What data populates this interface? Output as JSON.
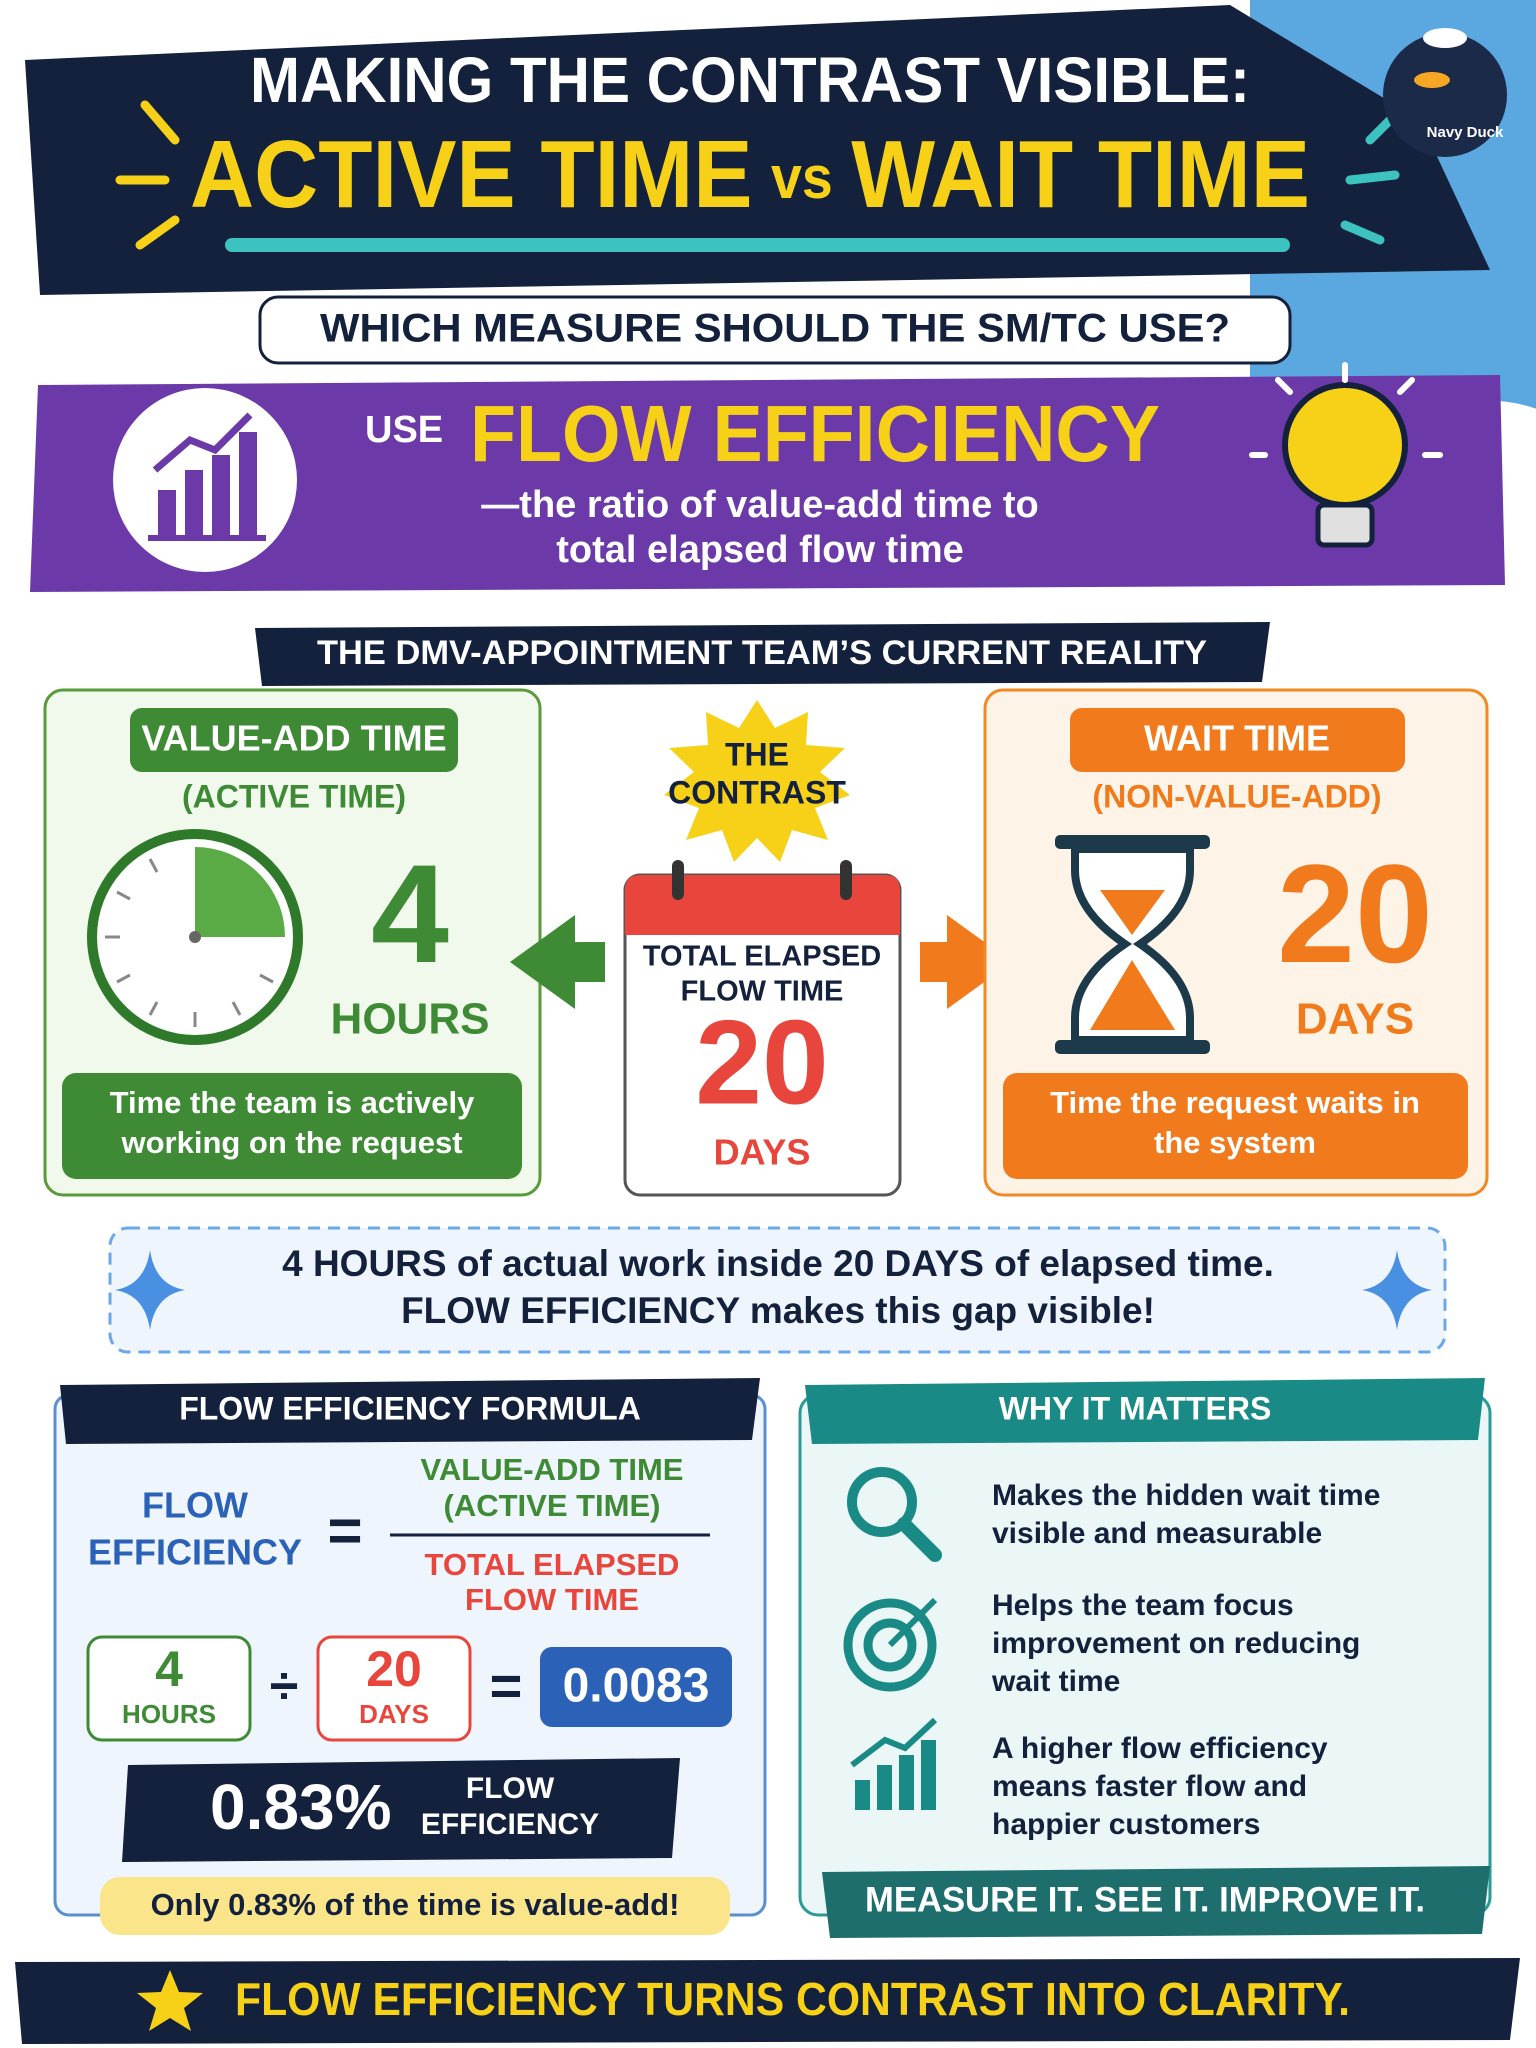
{
  "header": {
    "title_line1": "MAKING THE CONTRAST VISIBLE:",
    "title_active": "ACTIVE TIME",
    "title_vs": "vs",
    "title_wait": "WAIT TIME"
  },
  "logo": {
    "text": "Navy Duck"
  },
  "question": "WHICH MEASURE SHOULD THE SM/TC USE?",
  "recommendation": {
    "prefix": "USE",
    "term": "FLOW EFFICIENCY",
    "definition": [
      "—the ratio of value-add time to",
      "total elapsed flow time"
    ]
  },
  "reality": {
    "heading": "THE DMV-APPOINTMENT TEAM’S CURRENT REALITY",
    "value_add": {
      "title": "VALUE-ADD TIME",
      "subtitle": "(ACTIVE TIME)",
      "amount": "4",
      "unit": "HOURS",
      "description": [
        "Time the team is actively",
        "working on the request"
      ]
    },
    "contrast": {
      "label": [
        "THE",
        "CONTRAST"
      ],
      "calendar_label": [
        "TOTAL ELAPSED",
        "FLOW TIME"
      ],
      "amount": "20",
      "unit": "DAYS"
    },
    "wait": {
      "title": "WAIT TIME",
      "subtitle": "(NON-VALUE-ADD)",
      "amount": "20",
      "unit": "DAYS",
      "description": [
        "Time the request waits in",
        "the system"
      ]
    }
  },
  "callout": {
    "lines": [
      "4 HOURS of actual work inside 20 DAYS of elapsed time.",
      "FLOW EFFICIENCY makes this gap visible!"
    ]
  },
  "formula": {
    "heading": "FLOW EFFICIENCY FORMULA",
    "lhs": [
      "FLOW",
      "EFFICIENCY"
    ],
    "equals": "=",
    "numerator": [
      "VALUE-ADD TIME",
      "(ACTIVE TIME)"
    ],
    "denominator": [
      "TOTAL ELAPSED",
      "FLOW TIME"
    ],
    "active": {
      "amount": "4",
      "unit": "HOURS"
    },
    "divide": "÷",
    "total": {
      "amount": "20",
      "unit": "DAYS"
    },
    "result": "0.0083",
    "percent": "0.83%",
    "percent_label": [
      "FLOW",
      "EFFICIENCY"
    ],
    "note": "Only 0.83% of the time is value-add!"
  },
  "why": {
    "heading": "WHY IT MATTERS",
    "items": [
      [
        "Makes the hidden wait time",
        "visible and measurable"
      ],
      [
        "Helps the team focus",
        "improvement on reducing",
        "wait time"
      ],
      [
        "A higher flow efficiency",
        "means faster flow and",
        "happier customers"
      ]
    ],
    "footer": "MEASURE IT. SEE IT. IMPROVE IT."
  },
  "tagline": "FLOW EFFICIENCY TURNS CONTRAST INTO CLARITY."
}
